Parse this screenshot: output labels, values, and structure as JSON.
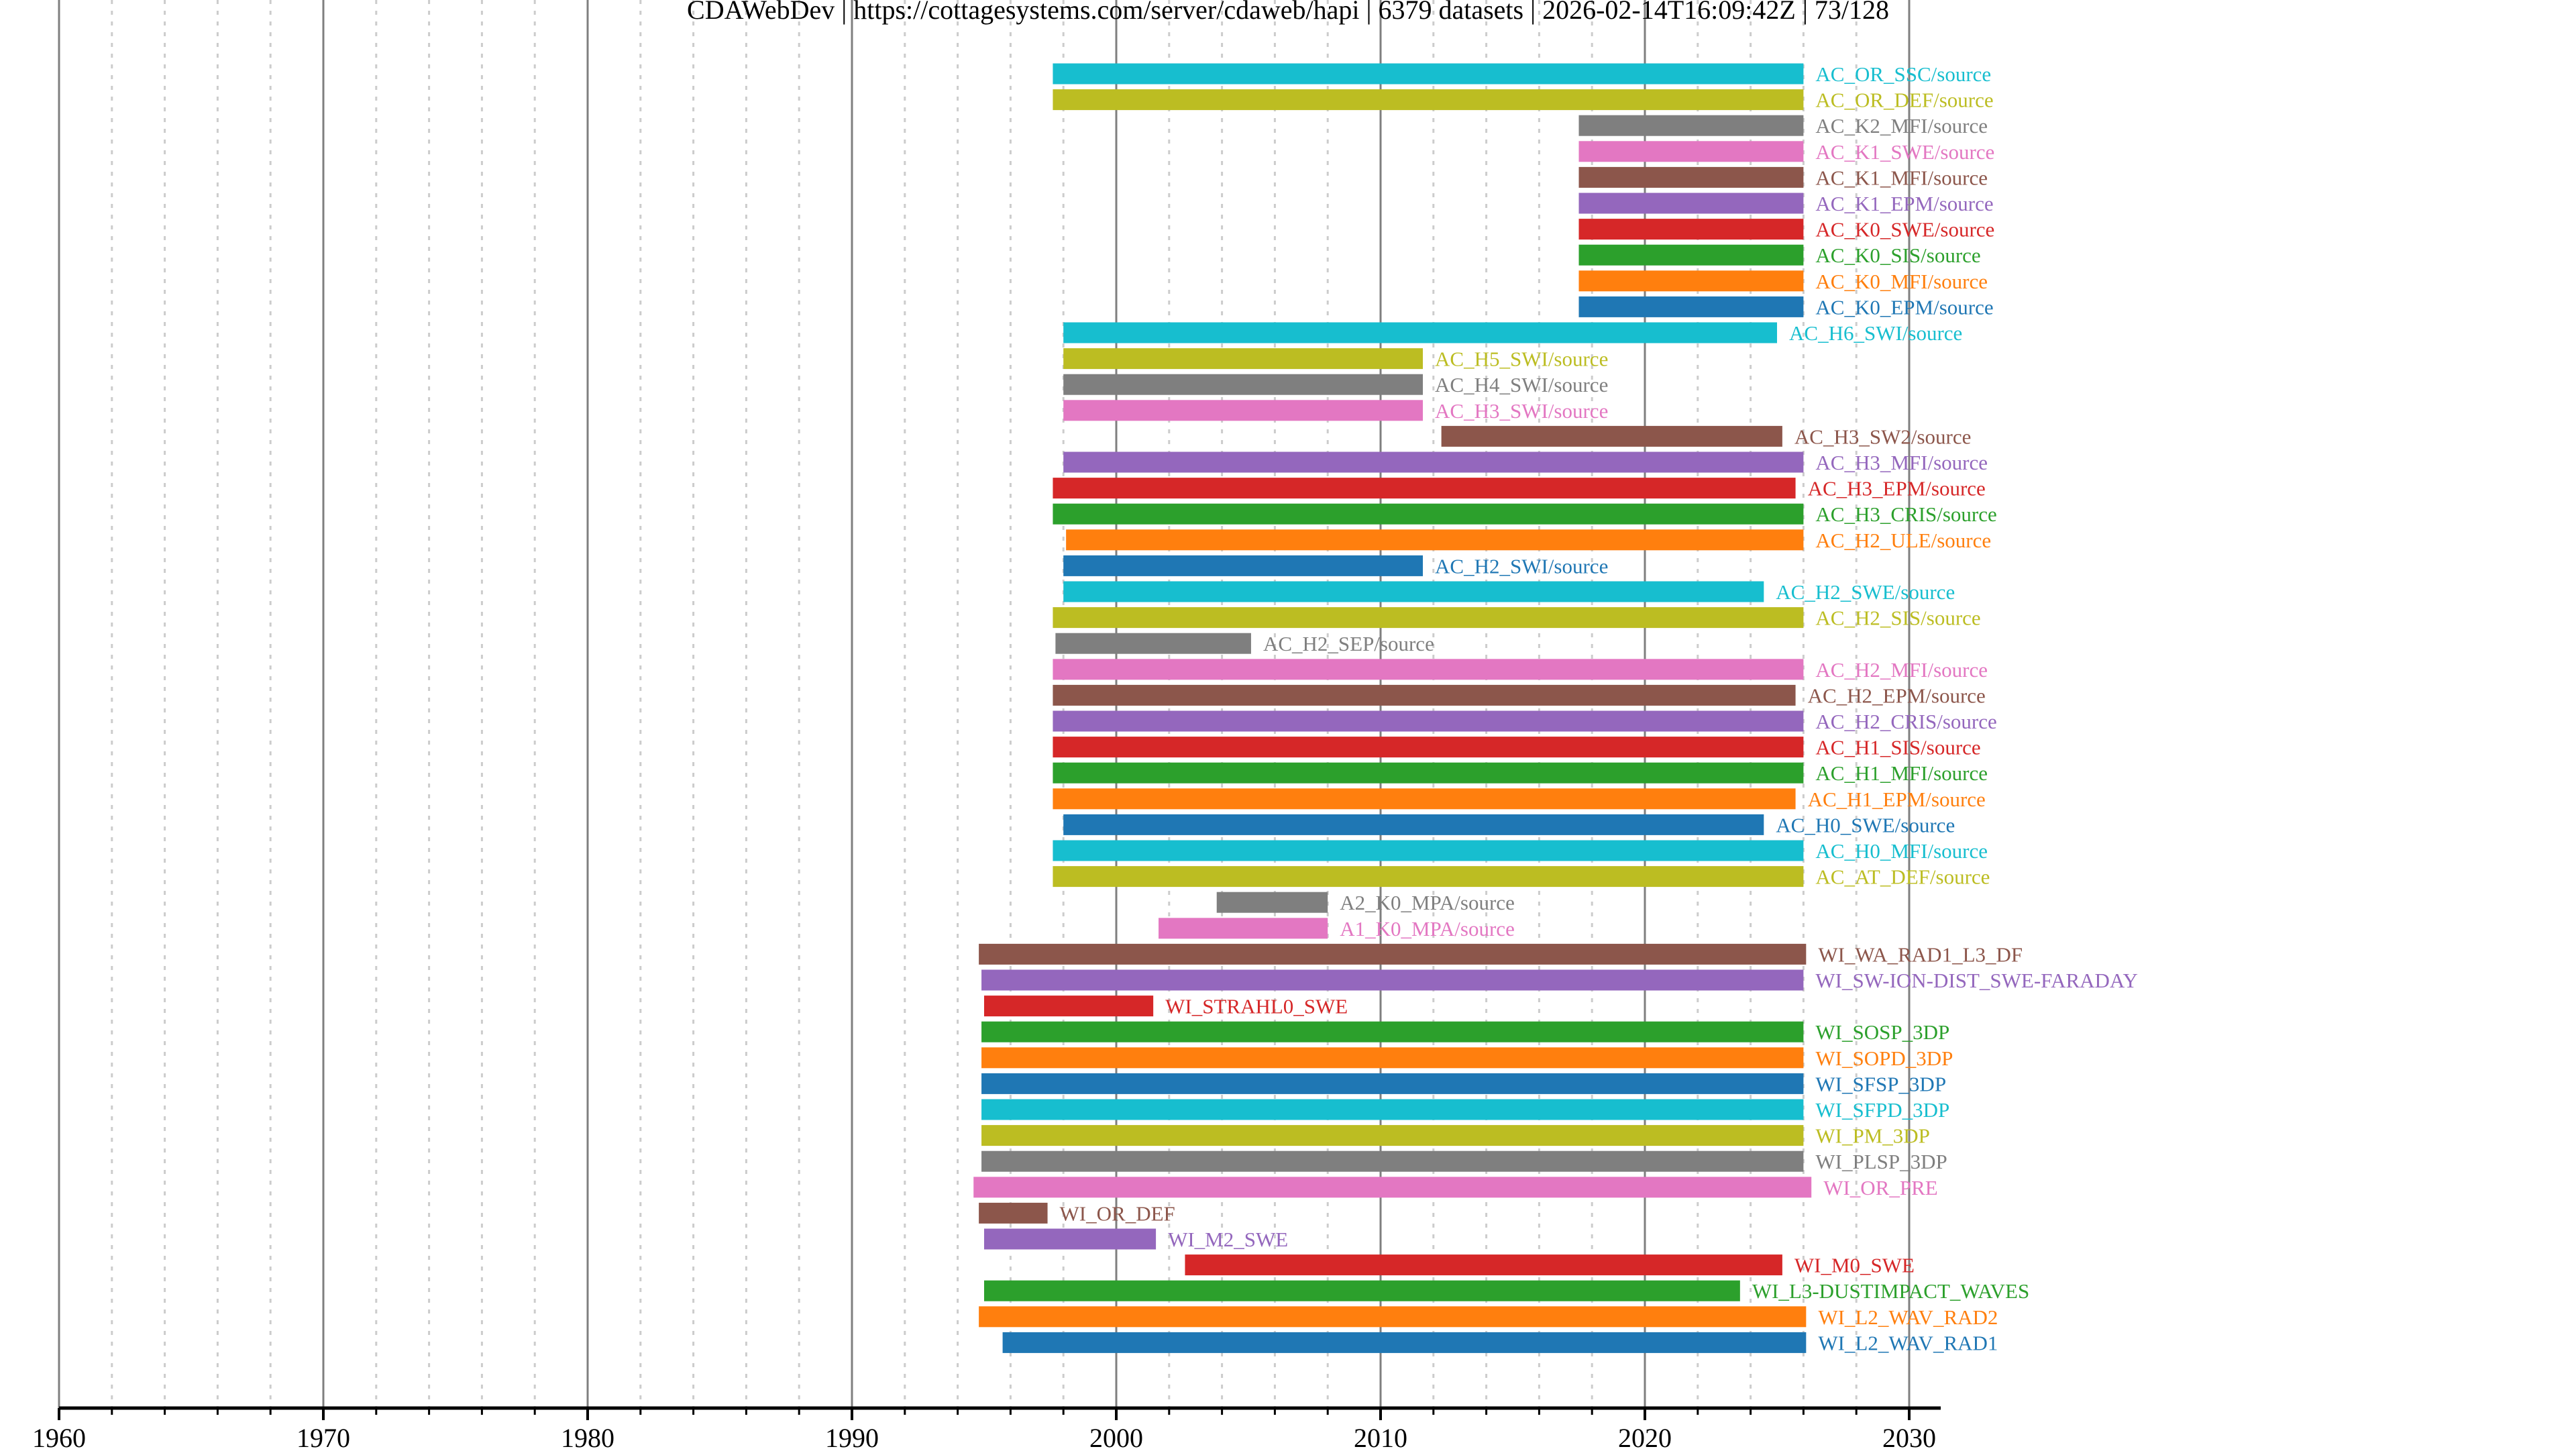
{
  "chart_data": {
    "type": "bar",
    "orientation": "horizontal-timeline",
    "title": "CDAWebDev | https://cottagesystems.com/server/cdaweb/hapi | 6379 datasets | 2026-02-14T16:09:42Z | 73/128",
    "title_parts": [
      "CDAWebDev",
      "https://cottagesystems.com/server/cdaweb/hapi",
      "6379 datasets",
      "2026-02-14T16:09:42Z",
      "73/128"
    ],
    "xlabel": "",
    "ylabel": "",
    "xlim": [
      1960,
      2031
    ],
    "x_ticks": [
      1960,
      1970,
      1980,
      1990,
      2000,
      2010,
      2020,
      2030
    ],
    "x_minor_step": 2,
    "grid": "major solid gray, minor dotted light gray",
    "legend": "none (labels placed right of each bar)",
    "palette": [
      "#1f77b4",
      "#ff7f0e",
      "#2ca02c",
      "#d62728",
      "#9467bd",
      "#8c564b",
      "#e377c2",
      "#7f7f7f",
      "#bcbd22",
      "#17becf"
    ],
    "series": [
      {
        "name": "AC_OR_SSC/source",
        "start": 1997.6,
        "stop": 2026.0,
        "color": "#17becf"
      },
      {
        "name": "AC_OR_DEF/source",
        "start": 1997.6,
        "stop": 2026.0,
        "color": "#bcbd22"
      },
      {
        "name": "AC_K2_MFI/source",
        "start": 2017.5,
        "stop": 2026.0,
        "color": "#7f7f7f"
      },
      {
        "name": "AC_K1_SWE/source",
        "start": 2017.5,
        "stop": 2026.0,
        "color": "#e377c2"
      },
      {
        "name": "AC_K1_MFI/source",
        "start": 2017.5,
        "stop": 2026.0,
        "color": "#8c564b"
      },
      {
        "name": "AC_K1_EPM/source",
        "start": 2017.5,
        "stop": 2026.0,
        "color": "#9467bd"
      },
      {
        "name": "AC_K0_SWE/source",
        "start": 2017.5,
        "stop": 2026.0,
        "color": "#d62728"
      },
      {
        "name": "AC_K0_SIS/source",
        "start": 2017.5,
        "stop": 2026.0,
        "color": "#2ca02c"
      },
      {
        "name": "AC_K0_MFI/source",
        "start": 2017.5,
        "stop": 2026.0,
        "color": "#ff7f0e"
      },
      {
        "name": "AC_K0_EPM/source",
        "start": 2017.5,
        "stop": 2026.0,
        "color": "#1f77b4"
      },
      {
        "name": "AC_H6_SWI/source",
        "start": 1998.0,
        "stop": 2025.0,
        "color": "#17becf"
      },
      {
        "name": "AC_H5_SWI/source",
        "start": 1998.0,
        "stop": 2011.6,
        "color": "#bcbd22"
      },
      {
        "name": "AC_H4_SWI/source",
        "start": 1998.0,
        "stop": 2011.6,
        "color": "#7f7f7f"
      },
      {
        "name": "AC_H3_SWI/source",
        "start": 1998.0,
        "stop": 2011.6,
        "color": "#e377c2"
      },
      {
        "name": "AC_H3_SW2/source",
        "start": 2012.3,
        "stop": 2025.2,
        "color": "#8c564b"
      },
      {
        "name": "AC_H3_MFI/source",
        "start": 1998.0,
        "stop": 2026.0,
        "color": "#9467bd"
      },
      {
        "name": "AC_H3_EPM/source",
        "start": 1997.6,
        "stop": 2025.7,
        "color": "#d62728"
      },
      {
        "name": "AC_H3_CRIS/source",
        "start": 1997.6,
        "stop": 2026.0,
        "color": "#2ca02c"
      },
      {
        "name": "AC_H2_ULE/source",
        "start": 1998.1,
        "stop": 2026.0,
        "color": "#ff7f0e"
      },
      {
        "name": "AC_H2_SWI/source",
        "start": 1998.0,
        "stop": 2011.6,
        "color": "#1f77b4"
      },
      {
        "name": "AC_H2_SWE/source",
        "start": 1998.0,
        "stop": 2024.5,
        "color": "#17becf"
      },
      {
        "name": "AC_H2_SIS/source",
        "start": 1997.6,
        "stop": 2026.0,
        "color": "#bcbd22"
      },
      {
        "name": "AC_H2_SEP/source",
        "start": 1997.7,
        "stop": 2005.1,
        "color": "#7f7f7f"
      },
      {
        "name": "AC_H2_MFI/source",
        "start": 1997.6,
        "stop": 2026.0,
        "color": "#e377c2"
      },
      {
        "name": "AC_H2_EPM/source",
        "start": 1997.6,
        "stop": 2025.7,
        "color": "#8c564b"
      },
      {
        "name": "AC_H2_CRIS/source",
        "start": 1997.6,
        "stop": 2026.0,
        "color": "#9467bd"
      },
      {
        "name": "AC_H1_SIS/source",
        "start": 1997.6,
        "stop": 2026.0,
        "color": "#d62728"
      },
      {
        "name": "AC_H1_MFI/source",
        "start": 1997.6,
        "stop": 2026.0,
        "color": "#2ca02c"
      },
      {
        "name": "AC_H1_EPM/source",
        "start": 1997.6,
        "stop": 2025.7,
        "color": "#ff7f0e"
      },
      {
        "name": "AC_H0_SWE/source",
        "start": 1998.0,
        "stop": 2024.5,
        "color": "#1f77b4"
      },
      {
        "name": "AC_H0_MFI/source",
        "start": 1997.6,
        "stop": 2026.0,
        "color": "#17becf"
      },
      {
        "name": "AC_AT_DEF/source",
        "start": 1997.6,
        "stop": 2026.0,
        "color": "#bcbd22"
      },
      {
        "name": "A2_K0_MPA/source",
        "start": 2003.8,
        "stop": 2008.0,
        "color": "#7f7f7f"
      },
      {
        "name": "A1_K0_MPA/source",
        "start": 2001.6,
        "stop": 2008.0,
        "color": "#e377c2"
      },
      {
        "name": "WI_WA_RAD1_L3_DF",
        "start": 1994.8,
        "stop": 2026.1,
        "color": "#8c564b"
      },
      {
        "name": "WI_SW-ION-DIST_SWE-FARADAY",
        "start": 1994.9,
        "stop": 2026.0,
        "color": "#9467bd"
      },
      {
        "name": "WI_STRAHL0_SWE",
        "start": 1995.0,
        "stop": 2001.4,
        "color": "#d62728"
      },
      {
        "name": "WI_SOSP_3DP",
        "start": 1994.9,
        "stop": 2026.0,
        "color": "#2ca02c"
      },
      {
        "name": "WI_SOPD_3DP",
        "start": 1994.9,
        "stop": 2026.0,
        "color": "#ff7f0e"
      },
      {
        "name": "WI_SFSP_3DP",
        "start": 1994.9,
        "stop": 2026.0,
        "color": "#1f77b4"
      },
      {
        "name": "WI_SFPD_3DP",
        "start": 1994.9,
        "stop": 2026.0,
        "color": "#17becf"
      },
      {
        "name": "WI_PM_3DP",
        "start": 1994.9,
        "stop": 2026.0,
        "color": "#bcbd22"
      },
      {
        "name": "WI_PLSP_3DP",
        "start": 1994.9,
        "stop": 2026.0,
        "color": "#7f7f7f"
      },
      {
        "name": "WI_OR_PRE",
        "start": 1994.6,
        "stop": 2026.3,
        "color": "#e377c2"
      },
      {
        "name": "WI_OR_DEF",
        "start": 1994.8,
        "stop": 1997.4,
        "color": "#8c564b"
      },
      {
        "name": "WI_M2_SWE",
        "start": 1995.0,
        "stop": 2001.5,
        "color": "#9467bd"
      },
      {
        "name": "WI_M0_SWE",
        "start": 2002.6,
        "stop": 2025.2,
        "color": "#d62728"
      },
      {
        "name": "WI_L3-DUSTIMPACT_WAVES",
        "start": 1995.0,
        "stop": 2023.6,
        "color": "#2ca02c"
      },
      {
        "name": "WI_L2_WAV_RAD2",
        "start": 1994.8,
        "stop": 2026.1,
        "color": "#ff7f0e"
      },
      {
        "name": "WI_L2_WAV_RAD1",
        "start": 1995.7,
        "stop": 2026.1,
        "color": "#1f77b4"
      }
    ]
  }
}
